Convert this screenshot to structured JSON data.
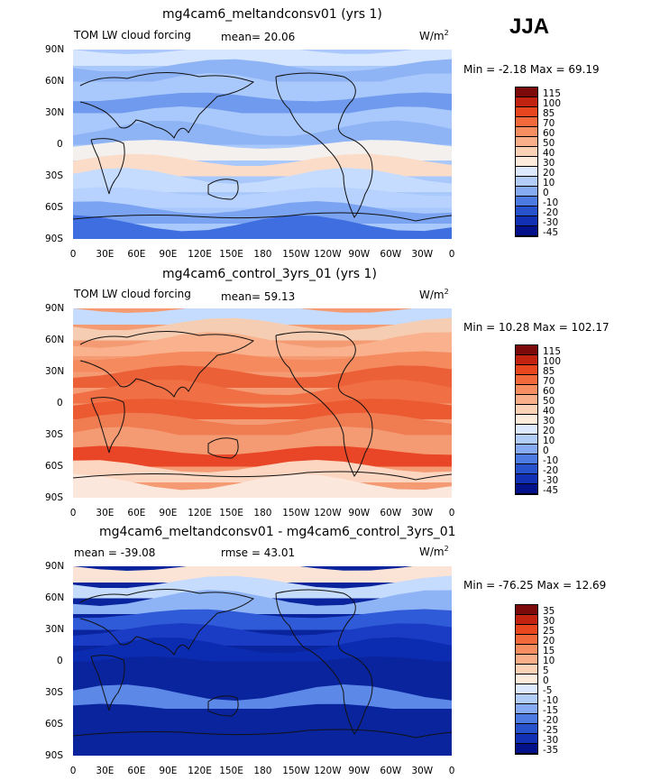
{
  "season": "JJA",
  "units_text": "W/m",
  "units_sup": "2",
  "panels": [
    {
      "title": "mg4cam6_meltandconsv01 (yrs 1)",
      "left_label": "TOM LW cloud forcing",
      "mean_text": "mean=  20.06",
      "minmax_text": "Min =  -2.18 Max =  69.19",
      "levels": [
        "115",
        "100",
        "85",
        "70",
        "60",
        "50",
        "40",
        "30",
        "20",
        "10",
        "0",
        "-10",
        "-20",
        "-30",
        "-45"
      ]
    },
    {
      "title": "mg4cam6_control_3yrs_01 (yrs 1)",
      "left_label": "TOM LW cloud forcing",
      "mean_text": "mean=  59.13",
      "minmax_text": "Min =  10.28 Max = 102.17",
      "levels": [
        "115",
        "100",
        "85",
        "70",
        "60",
        "50",
        "40",
        "30",
        "20",
        "10",
        "0",
        "-10",
        "-20",
        "-30",
        "-45"
      ]
    },
    {
      "title": "mg4cam6_meltandconsv01 - mg4cam6_control_3yrs_01",
      "left_label": "mean = -39.08",
      "mean_text": "rmse =  43.01",
      "minmax_text": "Min = -76.25 Max =  12.69",
      "levels": [
        "35",
        "30",
        "25",
        "20",
        "15",
        "10",
        "5",
        "0",
        "-5",
        "-10",
        "-15",
        "-20",
        "-25",
        "-30",
        "-35"
      ]
    }
  ],
  "lat_labels": [
    "90N",
    "60N",
    "30N",
    "0",
    "30S",
    "60S",
    "90S"
  ],
  "lon_labels": [
    "0",
    "30E",
    "60E",
    "90E",
    "120E",
    "150E",
    "180",
    "150W",
    "120W",
    "90W",
    "60W",
    "30W",
    "0"
  ],
  "colors": {
    "panel1_bands": [
      "#d6e6ff",
      "#8fb4f6",
      "#a9c8fb",
      "#6f9aee",
      "#a9c8fb",
      "#8fb4f6",
      "#f3f0ee",
      "#fbdcc8",
      "#c5dcff",
      "#b8d2ff",
      "#7aa4f2",
      "#3f6ee0"
    ],
    "panel2_bands": [
      "#c5dcff",
      "#f5cdb3",
      "#fab28e",
      "#f58a5e",
      "#ec6038",
      "#f06f45",
      "#ec5a32",
      "#f07c52",
      "#f59b74",
      "#e84626",
      "#fcd6c0",
      "#fbe7dc"
    ],
    "panel3_bands": [
      "#fbe3d6",
      "#c5dcff",
      "#8fb4f6",
      "#2f5bd8",
      "#1a3cc4",
      "#0b2bb0",
      "#0a249e",
      "#0a249e",
      "#5c88e8",
      "#0a249e",
      "#0a249e",
      "#0a249e"
    ],
    "colorbar_12": [
      "#7d0a0a",
      "#c22310",
      "#e8461f",
      "#f26a3c",
      "#f68e62",
      "#f9b08a",
      "#fcd2b6",
      "#fdecdc",
      "#dce9ff",
      "#b3cdfb",
      "#86abf2",
      "#4d7be2",
      "#2752cc",
      "#1230b4",
      "#03128a"
    ],
    "colorbar_3": [
      "#7d0a0a",
      "#c22310",
      "#e8461f",
      "#f26a3c",
      "#f68e62",
      "#f9b08a",
      "#fcd2b6",
      "#fdecdc",
      "#dce9ff",
      "#b3cdfb",
      "#86abf2",
      "#4d7be2",
      "#2752cc",
      "#1230b4",
      "#03128a"
    ]
  }
}
